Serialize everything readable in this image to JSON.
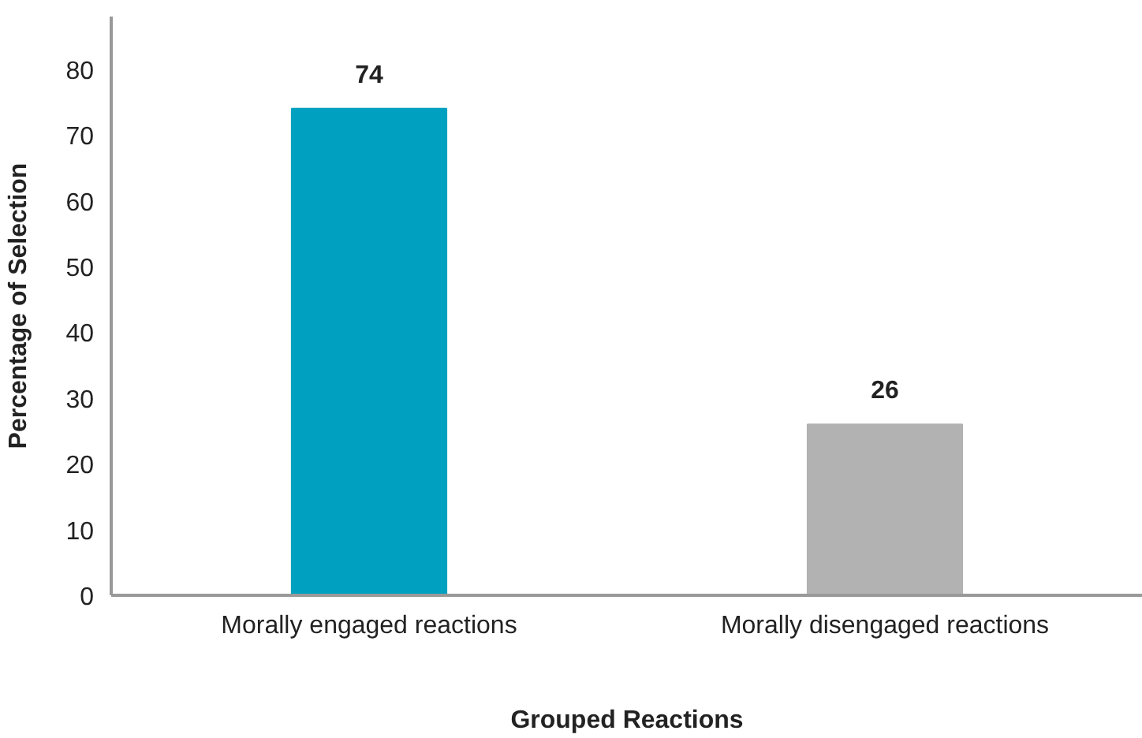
{
  "chart_data": {
    "type": "bar",
    "xlabel": "Grouped Reactions",
    "ylabel": "Percentage of Selection",
    "categories": [
      "Morally engaged reactions",
      "Morally disengaged reactions"
    ],
    "values": [
      74,
      26
    ],
    "colors": [
      "#00a0c0",
      "#b3b2b3"
    ],
    "ylim": [
      0,
      88
    ],
    "yticks": [
      0,
      10,
      20,
      30,
      40,
      50,
      60,
      70,
      80
    ],
    "grid": false,
    "data_labels": true
  }
}
